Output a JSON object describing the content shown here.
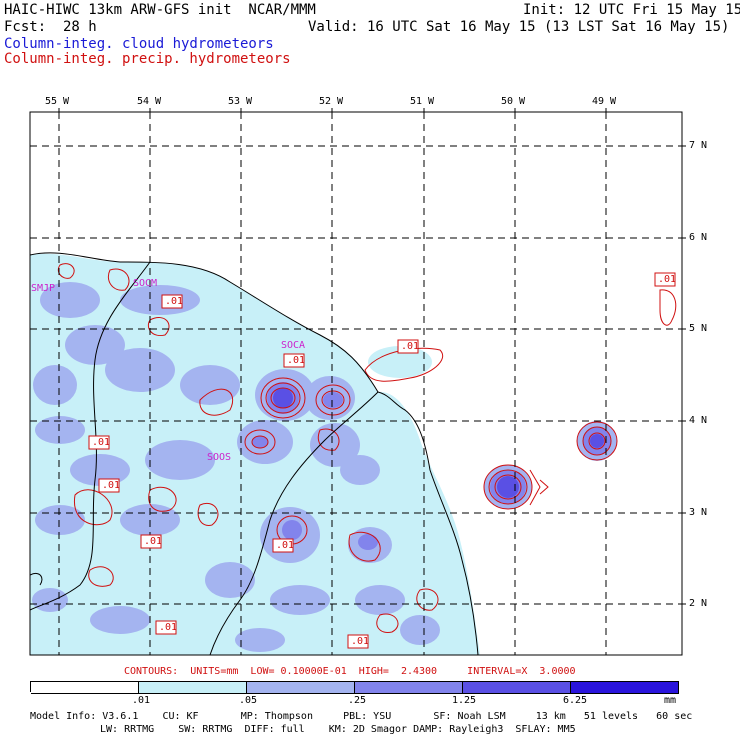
{
  "header": {
    "title": "HAIC-HIWC 13km ARW-GFS init  NCAR/MMM",
    "init": "Init: 12 UTC Fri 15 May 15",
    "fcst": "Fcst:  28 h",
    "valid": "Valid: 16 UTC Sat 16 May 15 (13 LST Sat 16 May 15)",
    "field1": "Column-integ. cloud hydrometeors",
    "field2": "Column-integ. precip. hydrometeors"
  },
  "map": {
    "lon_labels": [
      "55 W",
      "54 W",
      "53 W",
      "52 W",
      "51 W",
      "50 W",
      "49 W"
    ],
    "lat_labels": [
      "7 N",
      "6 N",
      "5 N",
      "4 N",
      "3 N",
      "2 N"
    ],
    "stations": [
      "SMJP",
      "SOCM",
      "SOCA",
      "SOOS"
    ],
    "contour_labels": [
      ".01",
      ".01",
      ".01",
      ".01",
      ".01",
      ".01",
      ".01",
      ".01",
      ".01"
    ],
    "colors": {
      "cloud": "#1a1ad6",
      "precip": "#d01010",
      "station": "#cc22cc"
    }
  },
  "contours_line": "CONTOURS:  UNITS=mm  LOW= 0.10000E-01  HIGH=  2.4300     INTERVAL=X  3.0000",
  "colorbar": {
    "ticks": [
      ".01",
      ".05",
      ".25",
      "1.25",
      "6.25",
      "mm"
    ],
    "colors": [
      "#ffffff",
      "#c8f0f8",
      "#a4b4f0",
      "#8284ec",
      "#5a50e4",
      "#2a14dc"
    ]
  },
  "model_info": {
    "line1": "Model Info: V3.6.1    CU: KF       MP: Thompson     PBL: YSU       SF: Noah LSM     13 km   51 levels   60 sec",
    "line2": "LW: RRTMG    SW: RRTMG  DIFF: full    KM: 2D Smagor DAMP: Rayleigh3  SFLAY: MM5"
  }
}
